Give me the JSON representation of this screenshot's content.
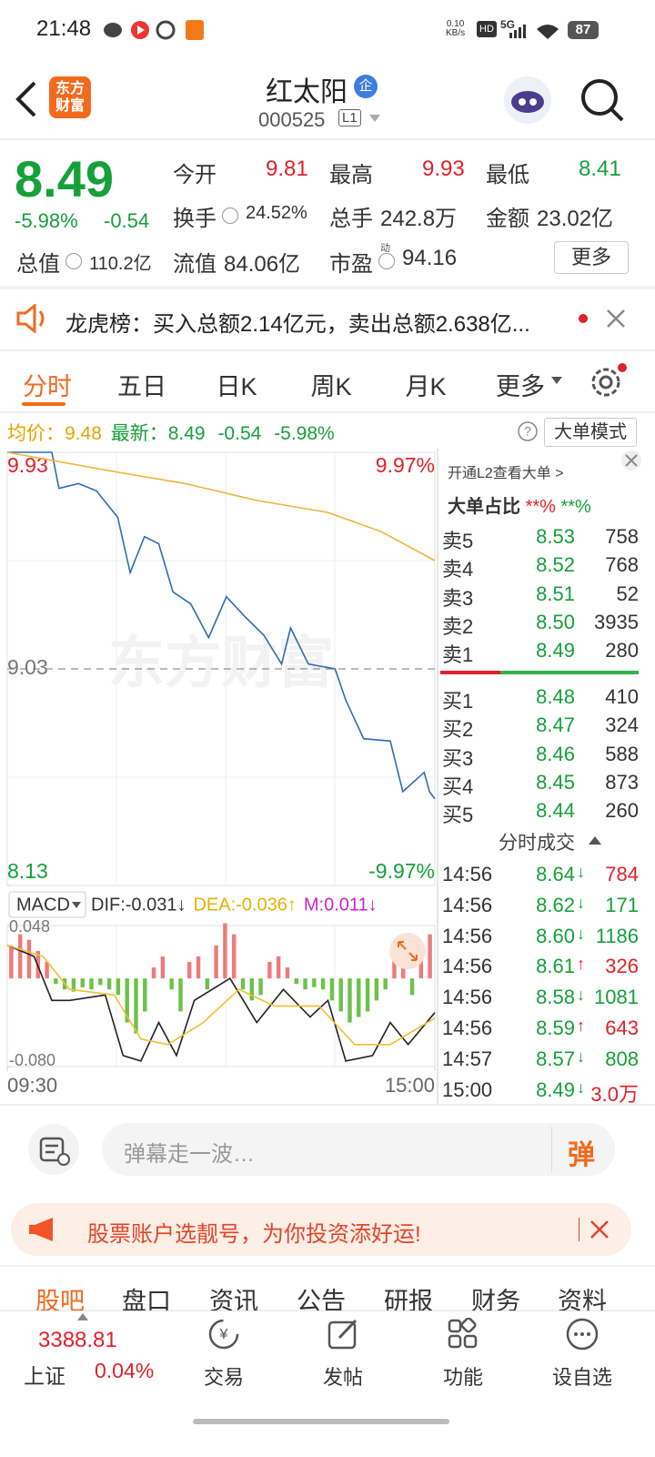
{
  "status": {
    "time": "21:48",
    "speed": "0.10",
    "speed_unit": "KB/s",
    "network": "5G",
    "battery": "87"
  },
  "header": {
    "logo": "东方财富",
    "name": "红太阳",
    "badge": "企",
    "code": "000525",
    "level": "L1"
  },
  "quote": {
    "price": "8.49",
    "change_pct": "-5.98%",
    "change": "-0.54",
    "fields": [
      {
        "label": "今开",
        "value": "9.81",
        "color": "#e0212a"
      },
      {
        "label": "最高",
        "value": "9.93",
        "color": "#e0212a"
      },
      {
        "label": "最低",
        "value": "8.41",
        "color": "#16a03a"
      },
      {
        "label": "换手",
        "value": "24.52%",
        "color": "#333333"
      },
      {
        "label": "总手",
        "value": "242.8万",
        "color": "#333333"
      },
      {
        "label": "金额",
        "value": "23.02亿",
        "color": "#333333"
      },
      {
        "label": "总值",
        "value": "110.2亿",
        "color": "#333333"
      },
      {
        "label": "流值",
        "value": "84.06亿",
        "color": "#333333"
      },
      {
        "label": "市盈",
        "value": "94.16",
        "color": "#333333"
      }
    ],
    "pe_mark": "动",
    "more": "更多"
  },
  "notice": {
    "text": "龙虎榜：买入总额2.14亿元，卖出总额2.638亿..."
  },
  "tabs": [
    "分时",
    "五日",
    "日K",
    "周K",
    "月K",
    "更多"
  ],
  "infobar": {
    "avg_label": "均价：",
    "avg": "9.48",
    "last_label": "最新：",
    "last": "8.49",
    "change": "-0.54",
    "change_pct": "-5.98%",
    "mode": "大单模式"
  },
  "chart_data": [
    {
      "type": "line",
      "xlim": [
        0,
        240
      ],
      "xticks": [
        {
          "value": 0,
          "label": "09:30"
        },
        {
          "value": 240,
          "label": "15:00"
        }
      ],
      "ylim": [
        8.13,
        9.93
      ],
      "yticks": [
        9.93,
        9.03,
        8.13
      ],
      "right_labels": [
        "9.97%",
        "-9.97%"
      ],
      "watermark": "东方财富",
      "series": [
        {
          "color": "#2f6db5",
          "x": [
            0,
            25,
            29,
            40,
            50,
            62,
            69,
            77,
            85,
            93,
            103,
            113,
            123,
            133,
            144,
            154,
            159,
            169,
            184,
            190,
            200,
            215,
            222,
            234,
            237,
            240
          ],
          "values": [
            9.93,
            9.93,
            9.78,
            9.8,
            9.77,
            9.66,
            9.43,
            9.58,
            9.55,
            9.35,
            9.3,
            9.16,
            9.33,
            9.25,
            9.17,
            9.05,
            9.2,
            9.05,
            9.03,
            8.9,
            8.74,
            8.73,
            8.52,
            8.6,
            8.52,
            8.49
          ]
        },
        {
          "color": "#f0b43c",
          "x": [
            0,
            30,
            60,
            100,
            140,
            180,
            210,
            240
          ],
          "values": [
            9.93,
            9.89,
            9.85,
            9.8,
            9.73,
            9.68,
            9.6,
            9.48
          ]
        }
      ]
    },
    {
      "type": "macd",
      "indicator": "MACD",
      "labels": [
        "DIF:-0.031↓",
        "DEA:-0.036↑",
        "M:0.011↓"
      ],
      "label_colors": [
        "#333333",
        "#e8b000",
        "#d020c8"
      ],
      "xlim": [
        0,
        240
      ],
      "ylim": [
        -0.08,
        0.048
      ],
      "yticks": [
        {
          "value": 0.048,
          "label": "0.048"
        },
        {
          "value": -0.08,
          "label": "-0.080"
        }
      ],
      "bar_colors": [
        "#ef7a7a",
        "#6cc24a"
      ],
      "bars": {
        "x": [
          0,
          5,
          10,
          15,
          20,
          25,
          30,
          35,
          40,
          45,
          50,
          55,
          60,
          65,
          70,
          75,
          80,
          85,
          90,
          95,
          100,
          105,
          110,
          115,
          120,
          125,
          130,
          135,
          140,
          145,
          150,
          155,
          160,
          165,
          170,
          175,
          180,
          185,
          190,
          195,
          200,
          205,
          210,
          215,
          220,
          225,
          230,
          235
        ],
        "values": [
          0.03,
          0.04,
          0.035,
          0.025,
          0.015,
          -0.005,
          -0.01,
          -0.012,
          -0.008,
          -0.01,
          -0.006,
          -0.01,
          -0.015,
          -0.04,
          -0.05,
          -0.03,
          0.01,
          0.02,
          -0.01,
          -0.03,
          0.015,
          0.02,
          -0.01,
          0.03,
          0.05,
          0.04,
          -0.01,
          -0.02,
          -0.015,
          0.015,
          0.02,
          0.01,
          -0.005,
          -0.01,
          -0.008,
          -0.01,
          -0.02,
          -0.03,
          -0.04,
          -0.035,
          -0.03,
          -0.02,
          -0.01,
          0.02,
          0.03,
          -0.015,
          0.02,
          0.04
        ]
      },
      "series": [
        {
          "color": "#222222",
          "x": [
            0,
            15,
            25,
            35,
            55,
            65,
            75,
            85,
            95,
            105,
            125,
            140,
            155,
            170,
            180,
            190,
            205,
            215,
            225,
            240
          ],
          "values": [
            0.03,
            0.02,
            -0.02,
            -0.02,
            -0.015,
            -0.07,
            -0.075,
            -0.04,
            -0.07,
            -0.02,
            0.0,
            -0.04,
            -0.01,
            -0.035,
            -0.02,
            -0.075,
            -0.07,
            -0.04,
            -0.06,
            -0.031
          ]
        },
        {
          "color": "#f0c030",
          "x": [
            0,
            20,
            35,
            60,
            75,
            90,
            110,
            130,
            150,
            175,
            195,
            215,
            240
          ],
          "values": [
            0.03,
            0.02,
            -0.01,
            -0.015,
            -0.055,
            -0.06,
            -0.04,
            -0.01,
            -0.025,
            -0.025,
            -0.06,
            -0.06,
            -0.036
          ]
        }
      ]
    }
  ],
  "orderbook": {
    "l2": "开通L2查看大单 >",
    "ratio_label": "大单占比",
    "ratio_buy": "**%",
    "ratio_sell": "**%",
    "sells": [
      {
        "label": "卖5",
        "price": "8.53",
        "vol": "758"
      },
      {
        "label": "卖4",
        "price": "8.52",
        "vol": "768"
      },
      {
        "label": "卖3",
        "price": "8.51",
        "vol": "52"
      },
      {
        "label": "卖2",
        "price": "8.50",
        "vol": "3935"
      },
      {
        "label": "卖1",
        "price": "8.49",
        "vol": "280"
      }
    ],
    "buys": [
      {
        "label": "买1",
        "price": "8.48",
        "vol": "410"
      },
      {
        "label": "买2",
        "price": "8.47",
        "vol": "324"
      },
      {
        "label": "买3",
        "price": "8.46",
        "vol": "588"
      },
      {
        "label": "买4",
        "price": "8.45",
        "vol": "873"
      },
      {
        "label": "买5",
        "price": "8.44",
        "vol": "260"
      }
    ],
    "trades_title": "分时成交",
    "trades": [
      {
        "time": "14:56",
        "price": "8.64",
        "dir": "↓",
        "vol": "784",
        "vol_color": "#e0212a"
      },
      {
        "time": "14:56",
        "price": "8.62",
        "dir": "↓",
        "vol": "171",
        "vol_color": "#16a03a"
      },
      {
        "time": "14:56",
        "price": "8.60",
        "dir": "↓",
        "vol": "1186",
        "vol_color": "#16a03a"
      },
      {
        "time": "14:56",
        "price": "8.61",
        "dir": "↑",
        "vol": "326",
        "vol_color": "#e0212a"
      },
      {
        "time": "14:56",
        "price": "8.58",
        "dir": "↓",
        "vol": "1081",
        "vol_color": "#16a03a"
      },
      {
        "time": "14:56",
        "price": "8.59",
        "dir": "↑",
        "vol": "643",
        "vol_color": "#e0212a"
      },
      {
        "time": "14:57",
        "price": "8.57",
        "dir": "↓",
        "vol": "808",
        "vol_color": "#16a03a"
      },
      {
        "time": "15:00",
        "price": "8.49",
        "dir": "↓",
        "vol": "3.0万",
        "vol_color": "#e0212a"
      }
    ]
  },
  "comment": {
    "placeholder": "弹幕走一波…",
    "button": "弹"
  },
  "ad": {
    "text": "股票账户选靓号，为你投资添好运!"
  },
  "section_tabs": [
    "股吧",
    "盘口",
    "资讯",
    "公告",
    "研报",
    "财务",
    "资料"
  ],
  "bottom_nav": {
    "index_value": "3388.81",
    "index_name": "上证",
    "index_change": "0.04%",
    "items": [
      "交易",
      "发帖",
      "功能",
      "设自选"
    ]
  }
}
